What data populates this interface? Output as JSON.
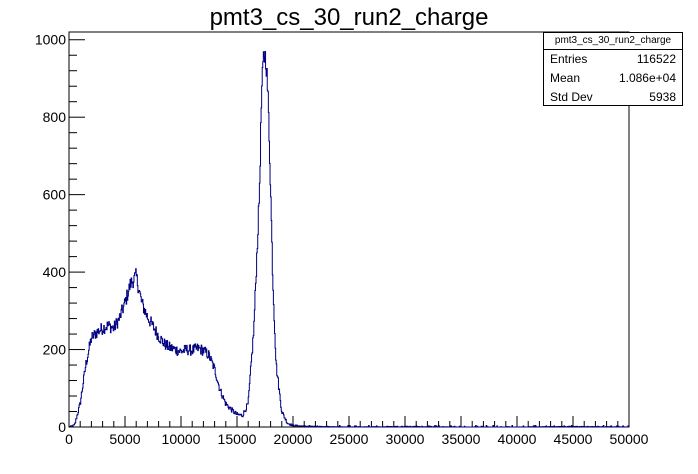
{
  "chart_data": {
    "type": "histogram",
    "title": "pmt3_cs_30_run2_charge",
    "xlabel": "",
    "ylabel": "",
    "xlim": [
      0,
      50000
    ],
    "ylim": [
      0,
      1020
    ],
    "x_ticks": [
      0,
      5000,
      10000,
      15000,
      20000,
      25000,
      30000,
      35000,
      40000,
      45000,
      50000
    ],
    "y_ticks": [
      0,
      200,
      400,
      600,
      800,
      1000
    ],
    "line_color": "#000080",
    "grid": false,
    "stats": {
      "title": "pmt3_cs_30_run2_charge",
      "entries_label": "Entries",
      "entries": "116522",
      "mean_label": "Mean",
      "mean": "1.086e+04",
      "stddev_label": "Std Dev",
      "stddev": "5938"
    },
    "series": [
      {
        "x": [
          0,
          500,
          1000,
          1500,
          2000,
          2500,
          3000,
          3500,
          4000,
          4500,
          5000,
          5500,
          6000,
          6500,
          7000,
          7500,
          8000,
          8500,
          9000,
          9500,
          10000,
          10500,
          11000,
          11500,
          12000,
          12500,
          13000,
          13500,
          14000,
          14500,
          15000,
          15500,
          16000,
          16500,
          17000,
          17200,
          17400,
          17600,
          17800,
          18000,
          18200,
          18500,
          19000,
          19500,
          20000,
          21000,
          22000,
          25000,
          30000,
          35000,
          40000,
          45000,
          50000
        ],
        "values": [
          0,
          5,
          60,
          160,
          230,
          245,
          255,
          262,
          255,
          280,
          320,
          370,
          390,
          320,
          285,
          260,
          235,
          215,
          205,
          200,
          195,
          200,
          198,
          203,
          198,
          185,
          150,
          95,
          60,
          45,
          32,
          30,
          60,
          250,
          600,
          860,
          965,
          950,
          830,
          620,
          380,
          160,
          40,
          10,
          4,
          2,
          1,
          0,
          1,
          0,
          0,
          1,
          0
        ]
      }
    ]
  }
}
